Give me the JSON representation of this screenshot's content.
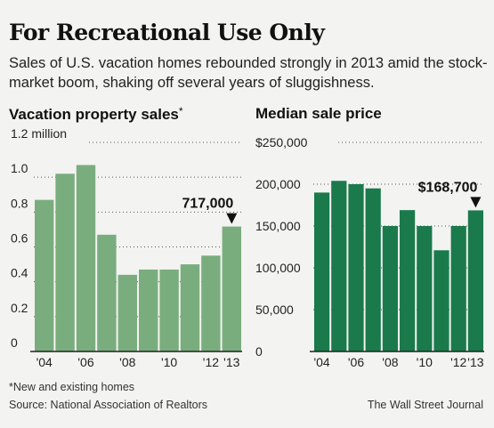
{
  "title": "For Recreational Use Only",
  "subtitle": "Sales of U.S. vacation homes rebounded strongly in 2013 amid the stock-market boom, shaking off several years of sluggishness.",
  "footnote": "*New and existing homes",
  "source": "Source: National Association of Realtors",
  "credit": "The Wall Street Journal",
  "colors": {
    "left_bars": "#7aad7e",
    "right_bars": "#1a7a4c",
    "background": "#f3f3f1"
  },
  "chart_data": [
    {
      "type": "bar",
      "title": "Vacation property sales",
      "title_suffix": "*",
      "categories": [
        "2004",
        "2005",
        "2006",
        "2007",
        "2008",
        "2009",
        "2010",
        "2011",
        "2012",
        "2013"
      ],
      "x_tick_labels": [
        "'04",
        "",
        "'06",
        "",
        "'08",
        "",
        "'10",
        "",
        "'12",
        "'13"
      ],
      "values": [
        0.87,
        1.02,
        1.07,
        0.67,
        0.44,
        0.47,
        0.47,
        0.5,
        0.55,
        0.717
      ],
      "ylim": [
        0,
        1.2
      ],
      "y_ticks": [
        0,
        0.2,
        0.4,
        0.6,
        0.8,
        1.0,
        1.2
      ],
      "y_tick_labels": [
        "0",
        "0.2",
        "0.4",
        "0.6",
        "0.8",
        "1.0",
        "1.2 million"
      ],
      "annotation": "717,000",
      "annotated_category": "2013",
      "grid": true
    },
    {
      "type": "bar",
      "title": "Median sale price",
      "categories": [
        "2004",
        "2005",
        "2006",
        "2007",
        "2008",
        "2009",
        "2010",
        "2011",
        "2012",
        "2013"
      ],
      "x_tick_labels": [
        "'04",
        "",
        "'06",
        "",
        "'08",
        "",
        "'10",
        "",
        "'12",
        "'13"
      ],
      "values": [
        190000,
        204000,
        200000,
        195000,
        150000,
        169000,
        150000,
        121000,
        150000,
        168700
      ],
      "ylim": [
        0,
        250000
      ],
      "y_ticks": [
        0,
        50000,
        100000,
        150000,
        200000,
        250000
      ],
      "y_tick_labels": [
        "0",
        "50,000",
        "100,000",
        "150,000",
        "200,000",
        "$250,000"
      ],
      "annotation": "$168,700",
      "annotated_category": "2013",
      "grid": true
    }
  ]
}
